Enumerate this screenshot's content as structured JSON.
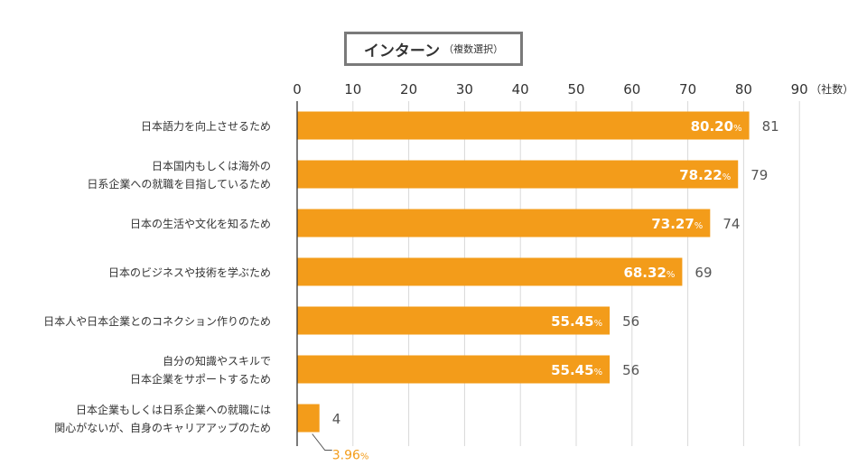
{
  "chart_data": {
    "type": "bar",
    "orientation": "horizontal",
    "title": "インターン",
    "subtitle": "（複数選択）",
    "unit_label": "（社数）",
    "percent_suffix": "%",
    "x_ticks": [
      0,
      10,
      20,
      30,
      40,
      50,
      60,
      70,
      80,
      90
    ],
    "xlim": [
      0,
      90
    ],
    "grid": true,
    "colors": {
      "bar": "#f39c1a",
      "grid": "#d9d9d9",
      "axis": "#333333",
      "text": "#333333",
      "value_text": "#555555",
      "percent_outside": "#f39c1a"
    },
    "categories": [
      [
        "日本語力を向上させるため"
      ],
      [
        "日本国内もしくは海外の",
        "日系企業への就職を目指しているため"
      ],
      [
        "日本の生活や文化を知るため"
      ],
      [
        "日本のビジネスや技術を学ぶため"
      ],
      [
        "日本人や日本企業とのコネクション作りのため"
      ],
      [
        "自分の知識やスキルで",
        "日本企業をサポートするため"
      ],
      [
        "日本企業もしくは日系企業への就職には",
        "関心がないが、自身のキャリアアップのため"
      ]
    ],
    "values": [
      81,
      79,
      74,
      69,
      56,
      56,
      4
    ],
    "percent_labels": [
      "80.20",
      "78.22",
      "73.27",
      "68.32",
      "55.45",
      "55.45",
      "3.96"
    ]
  }
}
